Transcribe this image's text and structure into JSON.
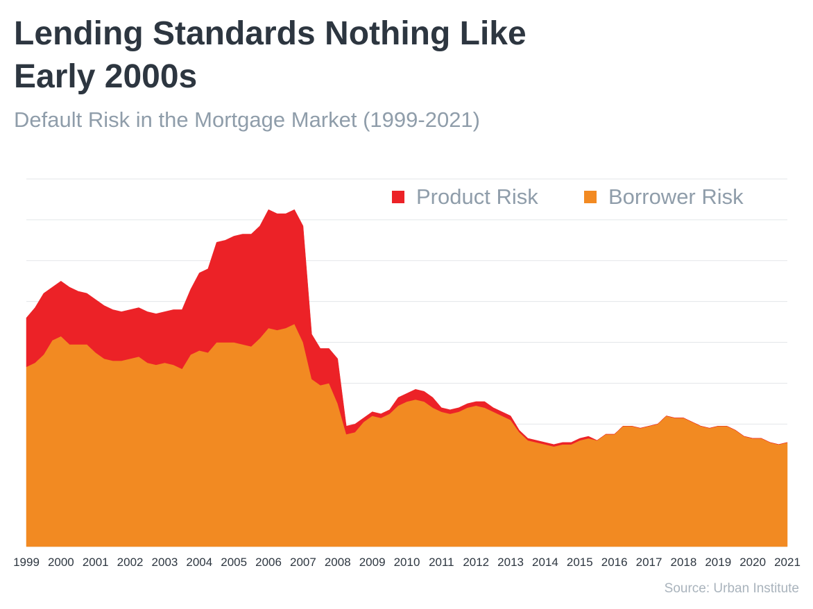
{
  "header": {
    "title_line1": "Lending Standards Nothing Like",
    "title_line2": "Early 2000s",
    "subtitle": "Default Risk in the Mortgage Market (1999-2021)"
  },
  "footer": {
    "source": "Source: Urban Institute"
  },
  "chart_data": {
    "type": "area",
    "stacked": true,
    "title": "Lending Standards Nothing Like Early 2000s",
    "subtitle": "Default Risk in the Mortgage Market (1999-2021)",
    "xlabel": "",
    "ylabel": "",
    "ylim": [
      0,
      9
    ],
    "grid": true,
    "legend_position": "top-right",
    "categories": [
      "1999",
      "2000",
      "2001",
      "2002",
      "2003",
      "2004",
      "2005",
      "2006",
      "2007",
      "2008",
      "2009",
      "2010",
      "2011",
      "2012",
      "2013",
      "2014",
      "2015",
      "2016",
      "2017",
      "2018",
      "2019",
      "2020",
      "2021"
    ],
    "x": [
      1999.0,
      1999.25,
      1999.5,
      1999.75,
      2000.0,
      2000.25,
      2000.5,
      2000.75,
      2001.0,
      2001.25,
      2001.5,
      2001.75,
      2002.0,
      2002.25,
      2002.5,
      2002.75,
      2003.0,
      2003.25,
      2003.5,
      2003.75,
      2004.0,
      2004.25,
      2004.5,
      2004.75,
      2005.0,
      2005.25,
      2005.5,
      2005.75,
      2006.0,
      2006.25,
      2006.5,
      2006.75,
      2007.0,
      2007.25,
      2007.5,
      2007.75,
      2008.0,
      2008.25,
      2008.5,
      2008.75,
      2009.0,
      2009.25,
      2009.5,
      2009.75,
      2010.0,
      2010.25,
      2010.5,
      2010.75,
      2011.0,
      2011.25,
      2011.5,
      2011.75,
      2012.0,
      2012.25,
      2012.5,
      2012.75,
      2013.0,
      2013.25,
      2013.5,
      2013.75,
      2014.0,
      2014.25,
      2014.5,
      2014.75,
      2015.0,
      2015.25,
      2015.5,
      2015.75,
      2016.0,
      2016.25,
      2016.5,
      2016.75,
      2017.0,
      2017.25,
      2017.5,
      2017.75,
      2018.0,
      2018.25,
      2018.5,
      2018.75,
      2019.0,
      2019.25,
      2019.5,
      2019.75,
      2020.0,
      2020.25,
      2020.5,
      2020.75,
      2021.0
    ],
    "series": [
      {
        "name": "Borrower Risk",
        "color": "#f28a22",
        "values": [
          4.4,
          4.5,
          4.7,
          5.05,
          5.15,
          4.95,
          4.95,
          4.95,
          4.75,
          4.6,
          4.55,
          4.55,
          4.6,
          4.65,
          4.5,
          4.45,
          4.5,
          4.45,
          4.35,
          4.7,
          4.8,
          4.75,
          5.0,
          5.0,
          5.0,
          4.95,
          4.9,
          5.1,
          5.35,
          5.3,
          5.35,
          5.45,
          5.0,
          4.1,
          3.95,
          4.0,
          3.5,
          2.75,
          2.8,
          3.05,
          3.2,
          3.15,
          3.25,
          3.45,
          3.55,
          3.6,
          3.55,
          3.4,
          3.3,
          3.25,
          3.3,
          3.4,
          3.45,
          3.4,
          3.3,
          3.2,
          3.1,
          2.8,
          2.6,
          2.55,
          2.5,
          2.45,
          2.5,
          2.5,
          2.6,
          2.65,
          2.6,
          2.75,
          2.75,
          2.95,
          2.95,
          2.9,
          2.95,
          3.0,
          3.2,
          3.15,
          3.15,
          3.05,
          2.95,
          2.9,
          2.95,
          2.95,
          2.85,
          2.7,
          2.65,
          2.65,
          2.55,
          2.5,
          2.55
        ]
      },
      {
        "name": "Product Risk",
        "color": "#ec2227",
        "values": [
          1.2,
          1.35,
          1.5,
          1.3,
          1.35,
          1.4,
          1.3,
          1.25,
          1.3,
          1.3,
          1.25,
          1.2,
          1.2,
          1.2,
          1.25,
          1.25,
          1.25,
          1.35,
          1.45,
          1.6,
          1.9,
          2.05,
          2.45,
          2.5,
          2.6,
          2.7,
          2.75,
          2.75,
          2.9,
          2.85,
          2.8,
          2.8,
          2.85,
          1.1,
          0.9,
          0.85,
          1.1,
          0.2,
          0.2,
          0.1,
          0.1,
          0.1,
          0.1,
          0.2,
          0.2,
          0.25,
          0.25,
          0.25,
          0.1,
          0.1,
          0.1,
          0.1,
          0.1,
          0.15,
          0.1,
          0.1,
          0.1,
          0.05,
          0.05,
          0.05,
          0.05,
          0.05,
          0.05,
          0.05,
          0.05,
          0.05,
          0.0,
          0.0,
          0.0,
          0.0,
          0.0,
          0.0,
          0.0,
          0.0,
          0.0,
          0.0,
          0.0,
          0.0,
          0.0,
          0.0,
          0.0,
          0.0,
          0.0,
          0.0,
          0.0,
          0.0,
          0.0,
          0.0,
          0.0
        ]
      }
    ]
  }
}
